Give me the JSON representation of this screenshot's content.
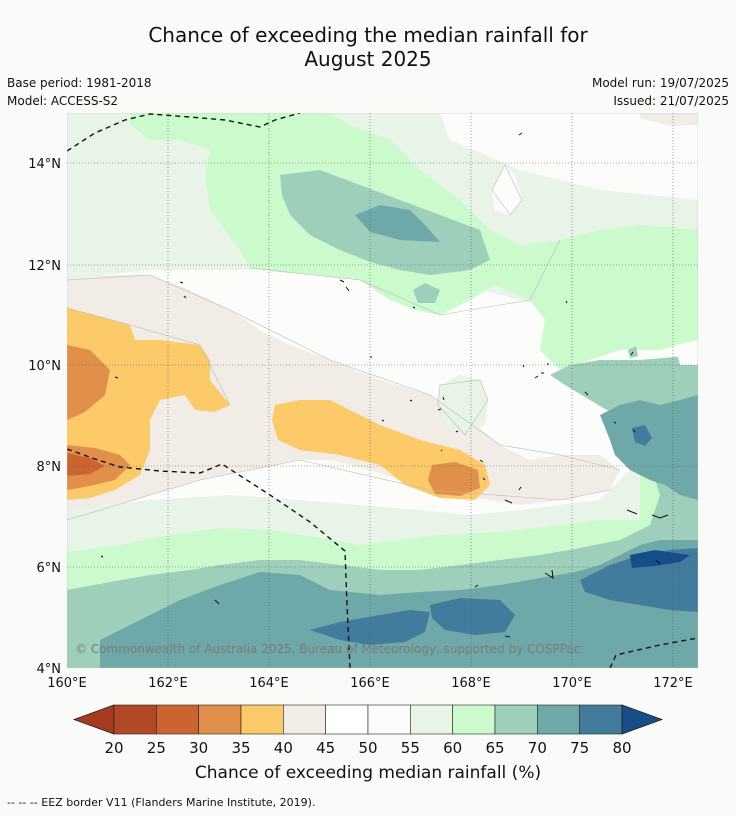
{
  "header": {
    "title_line1": "Chance of exceeding the median rainfall for",
    "title_line2": "August 2025",
    "base_period": "Base period: 1981-2018",
    "model": "Model: ACCESS-S2",
    "model_run": "Model run: 19/07/2025",
    "issued": "Issued: 21/07/2025"
  },
  "map": {
    "lat_labels": [
      "14°N",
      "12°N",
      "10°N",
      "8°N",
      "6°N",
      "4°N"
    ],
    "lon_labels": [
      "160°E",
      "162°E",
      "164°E",
      "166°E",
      "168°E",
      "170°E",
      "172°E"
    ],
    "copyright": "© Commonwealth of Australia 2025, Bureau of Meteorology, supported by COSPPac"
  },
  "colorbar": {
    "ticks": [
      "20",
      "25",
      "30",
      "35",
      "40",
      "45",
      "50",
      "55",
      "60",
      "65",
      "70",
      "75",
      "80"
    ],
    "colors": [
      "#a63b20",
      "#b14926",
      "#cc6432",
      "#e0904a",
      "#fdca6a",
      "#f2ece6",
      "#ffffff",
      "#fcfdfb",
      "#e9f4e8",
      "#cbfacc",
      "#9dcfba",
      "#6fa8a8",
      "#427b9b",
      "#174e8a"
    ],
    "label": "Chance of exceeding median rainfall (%)"
  },
  "footer": {
    "note": "--  --  -- EEZ border V11 (Flanders Marine Institute, 2019)."
  }
}
